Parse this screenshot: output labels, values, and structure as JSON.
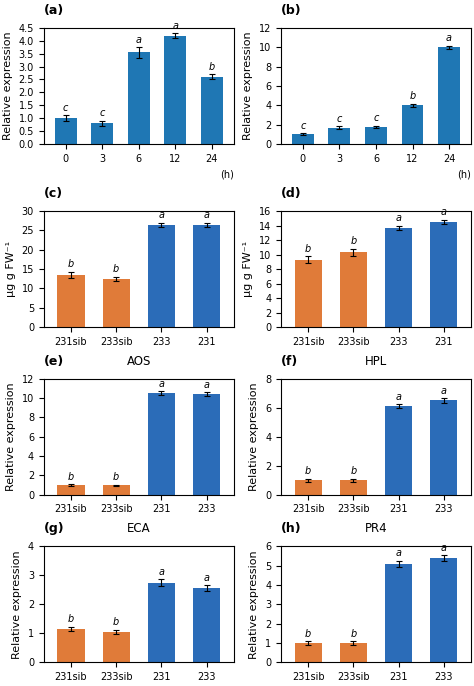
{
  "chart_data": [
    {
      "type": "bar",
      "title": "(a)",
      "xlabel": "(h)",
      "ylabel": "Relative expression",
      "categories": [
        "0",
        "3",
        "6",
        "12",
        "24"
      ],
      "values": [
        1.0,
        0.8,
        3.55,
        4.2,
        2.6
      ],
      "errors": [
        0.12,
        0.1,
        0.2,
        0.1,
        0.1
      ],
      "annotations": [
        "c",
        "c",
        "a",
        "a",
        "b"
      ],
      "ylim": [
        0,
        4.5
      ],
      "yticks": [
        {
          "value": 0,
          "label": "0.0"
        },
        0.5,
        1.0,
        1.5,
        2.0,
        2.5,
        3.0,
        3.5,
        4.0,
        4.5
      ]
    },
    {
      "type": "bar",
      "title": "(b)",
      "xlabel": "(h)",
      "ylabel": "Relative expression",
      "categories": [
        "0",
        "3",
        "6",
        "12",
        "24"
      ],
      "values": [
        1.0,
        1.65,
        1.75,
        4.0,
        10.0
      ],
      "errors": [
        0.1,
        0.15,
        0.12,
        0.15,
        0.15
      ],
      "annotations": [
        "c",
        "c",
        "c",
        "b",
        "a"
      ],
      "ylim": [
        0,
        12
      ],
      "yticks": [
        0,
        2,
        4,
        6,
        8,
        10,
        12
      ]
    },
    {
      "type": "bar",
      "title": "(c)",
      "ylabel": "μg g FW⁻¹",
      "categories": [
        "231sib",
        "233sib",
        "233",
        "231"
      ],
      "values": [
        13.5,
        12.5,
        26.5,
        26.5
      ],
      "errors": [
        0.8,
        0.5,
        0.5,
        0.5
      ],
      "annotations": [
        "b",
        "b",
        "a",
        "a"
      ],
      "ylim": [
        0,
        30
      ],
      "yticks": [
        0,
        5,
        10,
        15,
        20,
        25,
        30
      ],
      "colors": [
        "#E07B39",
        "#E07B39",
        "#2B6CB8",
        "#2B6CB8"
      ]
    },
    {
      "type": "bar",
      "title": "(d)",
      "ylabel": "μg g FW⁻¹",
      "categories": [
        "231sib",
        "233sib",
        "233",
        "231"
      ],
      "values": [
        9.3,
        10.3,
        13.7,
        14.5
      ],
      "errors": [
        0.5,
        0.5,
        0.3,
        0.3
      ],
      "annotations": [
        "b",
        "b",
        "a",
        "a"
      ],
      "ylim": [
        0,
        16
      ],
      "yticks": [
        0,
        2,
        4,
        6,
        8,
        10,
        12,
        14,
        16
      ],
      "colors": [
        "#E07B39",
        "#E07B39",
        "#2B6CB8",
        "#2B6CB8"
      ]
    },
    {
      "type": "bar",
      "title": "(e)",
      "subtitle": "AOS",
      "ylabel": "Relative expression",
      "categories": [
        "231sib",
        "233sib",
        "231",
        "233"
      ],
      "values": [
        1.0,
        0.95,
        10.5,
        10.4
      ],
      "errors": [
        0.1,
        0.1,
        0.2,
        0.2
      ],
      "annotations": [
        "b",
        "b",
        "a",
        "a"
      ],
      "ylim": [
        0,
        12
      ],
      "yticks": [
        0,
        2,
        4,
        6,
        8,
        10,
        12
      ],
      "colors": [
        "#E07B39",
        "#E07B39",
        "#2B6CB8",
        "#2B6CB8"
      ]
    },
    {
      "type": "bar",
      "title": "(f)",
      "subtitle": "HPL",
      "ylabel": "Relative expression",
      "categories": [
        "231sib",
        "233sib",
        "231",
        "233"
      ],
      "values": [
        1.0,
        1.0,
        6.1,
        6.5
      ],
      "errors": [
        0.1,
        0.1,
        0.15,
        0.15
      ],
      "annotations": [
        "b",
        "b",
        "a",
        "a"
      ],
      "ylim": [
        0,
        8
      ],
      "yticks": [
        0,
        2,
        4,
        6,
        8
      ],
      "colors": [
        "#E07B39",
        "#E07B39",
        "#2B6CB8",
        "#2B6CB8"
      ]
    },
    {
      "type": "bar",
      "title": "(g)",
      "subtitle": "ECA",
      "ylabel": "Relative expression",
      "categories": [
        "231sib",
        "233sib",
        "231",
        "233"
      ],
      "values": [
        1.15,
        1.05,
        2.75,
        2.55
      ],
      "errors": [
        0.08,
        0.08,
        0.12,
        0.1
      ],
      "annotations": [
        "b",
        "b",
        "a",
        "a"
      ],
      "ylim": [
        0,
        4
      ],
      "yticks": [
        0,
        1,
        2,
        3,
        4
      ],
      "colors": [
        "#E07B39",
        "#E07B39",
        "#2B6CB8",
        "#2B6CB8"
      ]
    },
    {
      "type": "bar",
      "title": "(h)",
      "subtitle": "PR4",
      "ylabel": "Relative expression",
      "categories": [
        "231sib",
        "233sib",
        "231",
        "233"
      ],
      "values": [
        1.0,
        1.0,
        5.1,
        5.4
      ],
      "errors": [
        0.1,
        0.1,
        0.15,
        0.15
      ],
      "annotations": [
        "b",
        "b",
        "a",
        "a"
      ],
      "ylim": [
        0,
        6
      ],
      "yticks": [
        0,
        1,
        2,
        3,
        4,
        5,
        6
      ],
      "colors": [
        "#E07B39",
        "#E07B39",
        "#2B6CB8",
        "#2B6CB8"
      ]
    }
  ]
}
